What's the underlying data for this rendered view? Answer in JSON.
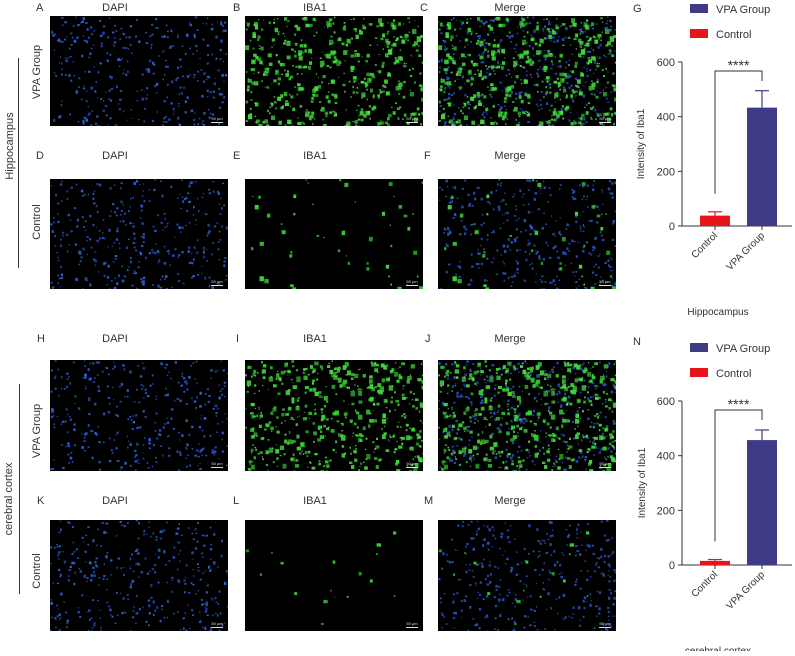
{
  "figure": {
    "sections": [
      {
        "region": "Hippocampus",
        "rows": [
          {
            "group": "VPA Group",
            "panels": [
              {
                "letter": "A",
                "title": "DAPI",
                "type": "dapi",
                "density": "high"
              },
              {
                "letter": "B",
                "title": "IBA1",
                "type": "iba1",
                "density": "high"
              },
              {
                "letter": "C",
                "title": "Merge",
                "type": "merge",
                "density": "high"
              }
            ]
          },
          {
            "group": "Control",
            "panels": [
              {
                "letter": "D",
                "title": "DAPI",
                "type": "dapi",
                "density": "high"
              },
              {
                "letter": "E",
                "title": "IBA1",
                "type": "iba1",
                "density": "low"
              },
              {
                "letter": "F",
                "title": "Merge",
                "type": "merge",
                "density": "low"
              }
            ]
          }
        ]
      },
      {
        "region": "cerebral cortex",
        "rows": [
          {
            "group": "VPA Group",
            "panels": [
              {
                "letter": "H",
                "title": "DAPI",
                "type": "dapi",
                "density": "high"
              },
              {
                "letter": "I",
                "title": "IBA1",
                "type": "iba1",
                "density": "high"
              },
              {
                "letter": "J",
                "title": "Merge",
                "type": "merge",
                "density": "high"
              }
            ]
          },
          {
            "group": "Control",
            "panels": [
              {
                "letter": "K",
                "title": "DAPI",
                "type": "dapi",
                "density": "high"
              },
              {
                "letter": "L",
                "title": "IBA1",
                "type": "iba1",
                "density": "verylow"
              },
              {
                "letter": "M",
                "title": "Merge",
                "type": "merge",
                "density": "verylow"
              }
            ]
          }
        ]
      }
    ],
    "scale_bar": "50 µm",
    "colors": {
      "vpa": "#3f3a85",
      "control": "#e8141c",
      "dapi": "#2f5fd8",
      "iba1": "#3fd83a",
      "axis": "#333333"
    }
  },
  "labels": {
    "A": "A",
    "B": "B",
    "C": "C",
    "D": "D",
    "E": "E",
    "F": "F",
    "H": "H",
    "I": "I",
    "J": "J",
    "K": "K",
    "L": "L",
    "M": "M",
    "G": "G",
    "N": "N",
    "dapi": "DAPI",
    "iba1": "IBA1",
    "merge": "Merge",
    "vpa_group": "VPA Group",
    "control": "Control",
    "hippocampus": "Hippocampus",
    "cortex": "cerebral cortex",
    "scale": "50 µm"
  },
  "chart_data": [
    {
      "panel": "G",
      "type": "bar",
      "title": "",
      "xlabel": "Hippocampus",
      "ylabel": "Intensity of Iba1",
      "categories": [
        "Control",
        "VPA Group"
      ],
      "values": [
        38,
        433
      ],
      "error": [
        14,
        62
      ],
      "colors": [
        "#e8141c",
        "#3f3a85"
      ],
      "ylim": [
        0,
        600
      ],
      "yticks": [
        0,
        200,
        400,
        600
      ],
      "legend": [
        {
          "label": "VPA Group",
          "color": "#3f3a85"
        },
        {
          "label": "Control",
          "color": "#e8141c"
        }
      ],
      "legend_position": "top",
      "significance": "****",
      "grid": false
    },
    {
      "panel": "N",
      "type": "bar",
      "title": "",
      "xlabel": "cerebral cortex",
      "ylabel": "Intensity of Iba1",
      "categories": [
        "Control",
        "VPA Group"
      ],
      "values": [
        15,
        457
      ],
      "error": [
        5,
        37
      ],
      "colors": [
        "#e8141c",
        "#3f3a85"
      ],
      "ylim": [
        0,
        600
      ],
      "yticks": [
        0,
        200,
        400,
        600
      ],
      "legend": [
        {
          "label": "VPA Group",
          "color": "#3f3a85"
        },
        {
          "label": "Control",
          "color": "#e8141c"
        }
      ],
      "legend_position": "top",
      "significance": "****",
      "grid": false
    }
  ]
}
